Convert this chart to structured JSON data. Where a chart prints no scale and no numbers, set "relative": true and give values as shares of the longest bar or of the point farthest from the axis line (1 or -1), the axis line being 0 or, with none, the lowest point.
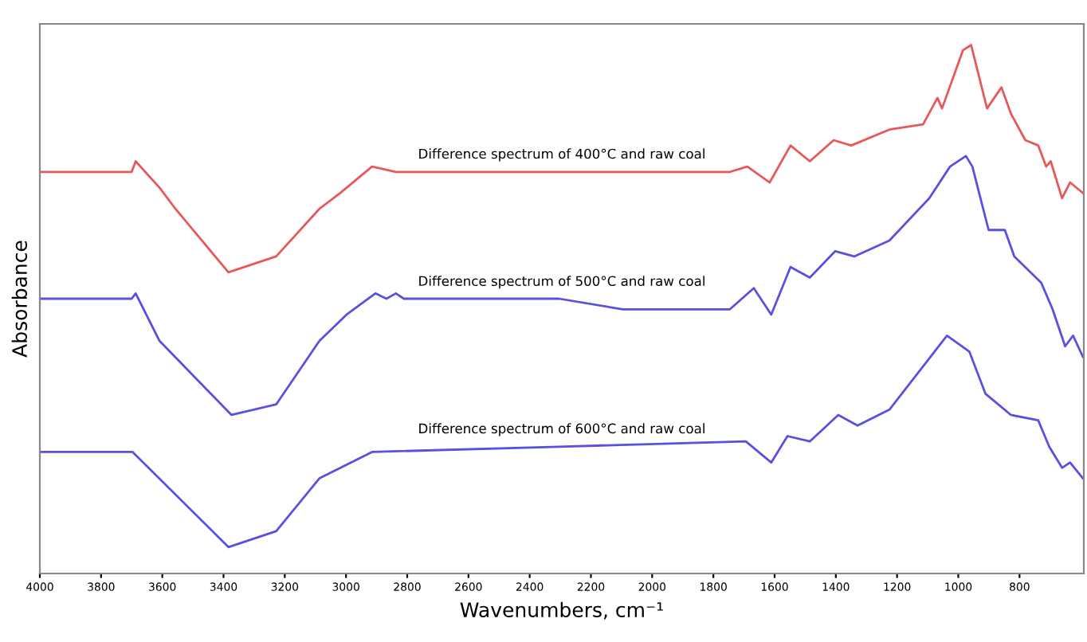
{
  "chart_data": {
    "type": "line",
    "relative": true,
    "xlabel": "Wavenumbers, cm⁻¹",
    "ylabel": "Absorbance",
    "xlim": [
      4000,
      590
    ],
    "xticks": [
      4000,
      3800,
      3600,
      3400,
      3200,
      3000,
      2800,
      2600,
      2400,
      2200,
      2000,
      1800,
      1600,
      1400,
      1200,
      1000,
      800
    ],
    "legend": false,
    "grid": false,
    "tick_labels": "x",
    "series": [
      {
        "name": "Difference spectrum of 400°C and raw coal",
        "color": "#e8585a",
        "x": [
          4000,
          3700,
          3687,
          3609,
          3557,
          3384,
          3228,
          3087,
          3019,
          2915,
          2837,
          2304,
          1746,
          1689,
          1616,
          1548,
          1485,
          1407,
          1350,
          1225,
          1115,
          1068,
          1053,
          985,
          958,
          906,
          859,
          828,
          781,
          739,
          713,
          698,
          661,
          635,
          593
        ],
        "values": [
          0.76,
          0.76,
          0.78,
          0.73,
          0.69,
          0.57,
          0.6,
          0.69,
          0.72,
          0.77,
          0.76,
          0.76,
          0.76,
          0.77,
          0.74,
          0.81,
          0.78,
          0.82,
          0.81,
          0.84,
          0.85,
          0.9,
          0.88,
          0.99,
          1.0,
          0.88,
          0.92,
          0.87,
          0.82,
          0.81,
          0.77,
          0.78,
          0.71,
          0.74,
          0.72
        ]
      },
      {
        "name": "Difference spectrum of 500°C and raw coal",
        "color": "#5a50e0",
        "x": [
          4000,
          3700,
          3687,
          3609,
          3374,
          3228,
          3087,
          2998,
          2904,
          2868,
          2837,
          2811,
          2304,
          2096,
          1746,
          1668,
          1611,
          1548,
          1485,
          1402,
          1340,
          1225,
          1095,
          1027,
          975,
          954,
          901,
          848,
          817,
          729,
          692,
          651,
          625,
          593
        ],
        "values": [
          0.52,
          0.52,
          0.53,
          0.44,
          0.3,
          0.32,
          0.44,
          0.49,
          0.53,
          0.52,
          0.53,
          0.52,
          0.52,
          0.5,
          0.5,
          0.54,
          0.49,
          0.58,
          0.56,
          0.61,
          0.6,
          0.63,
          0.71,
          0.77,
          0.79,
          0.77,
          0.65,
          0.65,
          0.6,
          0.55,
          0.5,
          0.43,
          0.45,
          0.41
        ]
      },
      {
        "name": "Difference spectrum of 600°C and raw coal",
        "color": "#5a50e0",
        "x": [
          4000,
          3697,
          3384,
          3228,
          3087,
          2915,
          2304,
          1694,
          1611,
          1558,
          1485,
          1392,
          1329,
          1225,
          1037,
          964,
          911,
          828,
          739,
          703,
          661,
          635,
          593
        ],
        "values": [
          0.23,
          0.23,
          0.05,
          0.08,
          0.18,
          0.23,
          0.24,
          0.25,
          0.21,
          0.26,
          0.25,
          0.3,
          0.28,
          0.31,
          0.45,
          0.42,
          0.34,
          0.3,
          0.29,
          0.24,
          0.2,
          0.21,
          0.18
        ]
      }
    ]
  }
}
